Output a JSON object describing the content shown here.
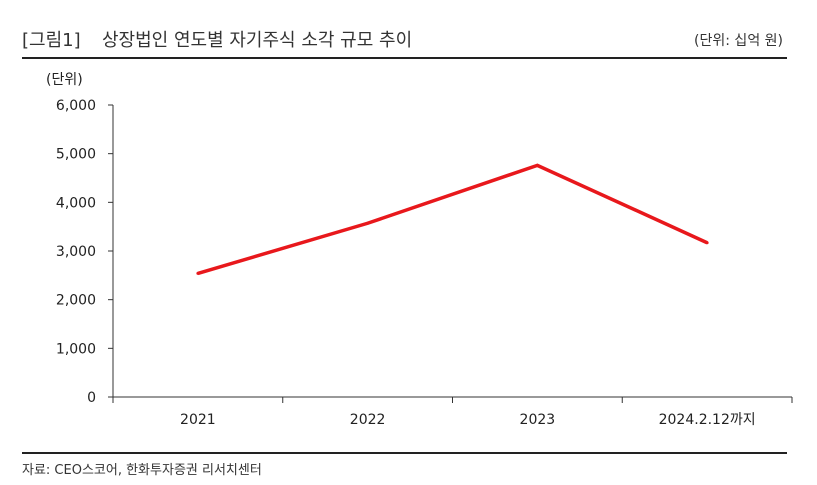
{
  "header": {
    "figure_label": "[그림1]",
    "title": "상장법인 연도별 자기주식 소각 규모 추이",
    "unit_note": "(단위: 십억 원)"
  },
  "source": "자료: CEO스코어, 한화투자증권 리서치센터",
  "chart_data": {
    "type": "line",
    "title": "상장법인 연도별 자기주식 소각 규모 추이",
    "xlabel": "",
    "ylabel": "(단위)",
    "categories": [
      "2021",
      "2022",
      "2023",
      "2024.2.12까지"
    ],
    "series": [
      {
        "values": [
          2540,
          3570,
          4760,
          3170
        ],
        "color": "#e8181c"
      }
    ],
    "ylim": [
      0,
      6000
    ],
    "yticks": [
      0,
      1000,
      2000,
      3000,
      4000,
      5000,
      6000
    ],
    "ytick_labels": [
      "0",
      "1,000",
      "2,000",
      "3,000",
      "4,000",
      "5,000",
      "6,000"
    ],
    "grid": false,
    "legend": "none"
  }
}
